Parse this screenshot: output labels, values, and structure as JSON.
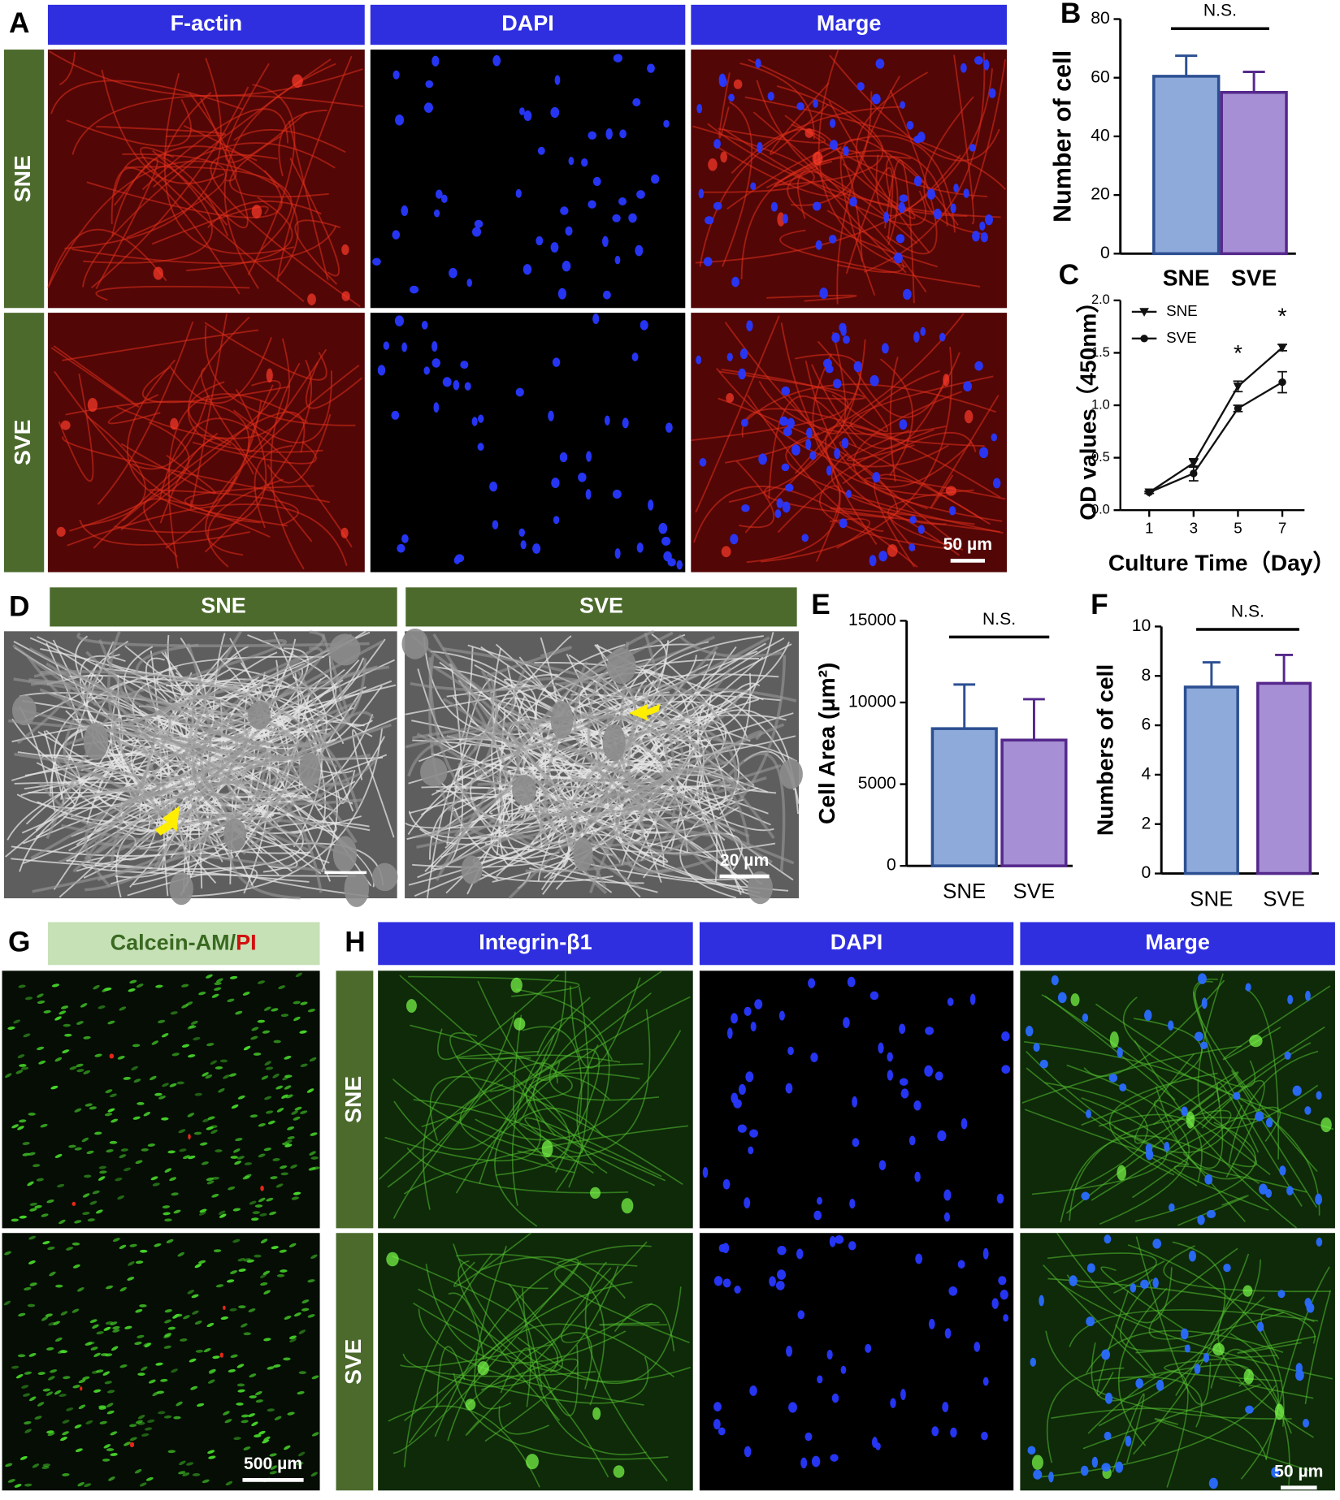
{
  "figure": {
    "A": {
      "letter": "A",
      "headers": [
        "F-actin",
        "DAPI",
        "Marge"
      ],
      "rows": [
        "SNE",
        "SVE"
      ],
      "scale_bar": "50 µm"
    },
    "B": {
      "letter": "B"
    },
    "C": {
      "letter": "C"
    },
    "D": {
      "letter": "D",
      "headers": [
        "SNE",
        "SVE"
      ],
      "scale_bar": "20 µm"
    },
    "E": {
      "letter": "E"
    },
    "F": {
      "letter": "F"
    },
    "G": {
      "letter": "G",
      "header": [
        "Calcein-AM/",
        "PI"
      ],
      "scale_bar": "500 µm"
    },
    "H": {
      "letter": "H",
      "headers": [
        "Integrin-β1",
        "DAPI",
        "Marge"
      ],
      "rows": [
        "SNE",
        "SVE"
      ],
      "scale_bar": "50 µm"
    }
  },
  "chart_data": [
    {
      "type": "bar",
      "ylabel": "Number of cell",
      "categories": [
        "SNE",
        "SVE"
      ],
      "values": [
        60.5,
        55
      ],
      "errors": [
        7,
        7
      ],
      "colors": [
        "#8eaadb",
        "#a68fd4"
      ],
      "edge_colors": [
        "#2c4f92",
        "#55288c"
      ],
      "ylim": [
        0,
        80
      ],
      "yticks": [
        0,
        20,
        40,
        60,
        80
      ],
      "annotation": "N.S."
    },
    {
      "type": "line",
      "xlabel": "Culture Time（Day）",
      "ylabel": "OD values（450nm）",
      "x": [
        1,
        3,
        5,
        7
      ],
      "series": [
        {
          "name": "SNE",
          "color": "#111111",
          "marker": "triangle-down",
          "values": [
            0.17,
            0.45,
            1.18,
            1.55
          ],
          "errors": [
            0.01,
            0.04,
            0.05,
            0.03
          ]
        },
        {
          "name": "SVE",
          "color": "#111111",
          "marker": "circle",
          "values": [
            0.17,
            0.35,
            0.97,
            1.22
          ],
          "errors": [
            0.01,
            0.07,
            0.03,
            0.1
          ]
        }
      ],
      "xlim": [
        0,
        8
      ],
      "xticks": [
        1,
        3,
        5,
        7
      ],
      "ylim": [
        0,
        2
      ],
      "yticks": [
        {
          "value": 0,
          "label": "0.0"
        },
        0.5,
        {
          "value": 1,
          "label": "1.0"
        },
        1.5,
        {
          "value": 2,
          "label": "2.0"
        }
      ],
      "legend": "upper left",
      "annotations": [
        {
          "text": "*",
          "x": 5
        },
        {
          "text": "*",
          "x": 7
        }
      ]
    },
    {
      "type": "bar",
      "ylabel": "Cell Area (μm²)",
      "categories": [
        "SNE",
        "SVE"
      ],
      "values": [
        8400,
        7700
      ],
      "errors": [
        2700,
        2500
      ],
      "colors": [
        "#8eaadb",
        "#a68fd4"
      ],
      "edge_colors": [
        "#2c4f92",
        "#55288c"
      ],
      "ylim": [
        0,
        15000
      ],
      "yticks": [
        0,
        5000,
        10000,
        15000
      ],
      "annotation": "N.S."
    },
    {
      "type": "bar",
      "ylabel": "Numbers of cell",
      "categories": [
        "SNE",
        "SVE"
      ],
      "values": [
        7.55,
        7.7
      ],
      "errors": [
        1.0,
        1.15
      ],
      "colors": [
        "#8eaadb",
        "#a68fd4"
      ],
      "edge_colors": [
        "#2c4f92",
        "#55288c"
      ],
      "ylim": [
        0,
        10
      ],
      "yticks": [
        0,
        2,
        4,
        6,
        8,
        10
      ],
      "annotation": "N.S."
    }
  ]
}
